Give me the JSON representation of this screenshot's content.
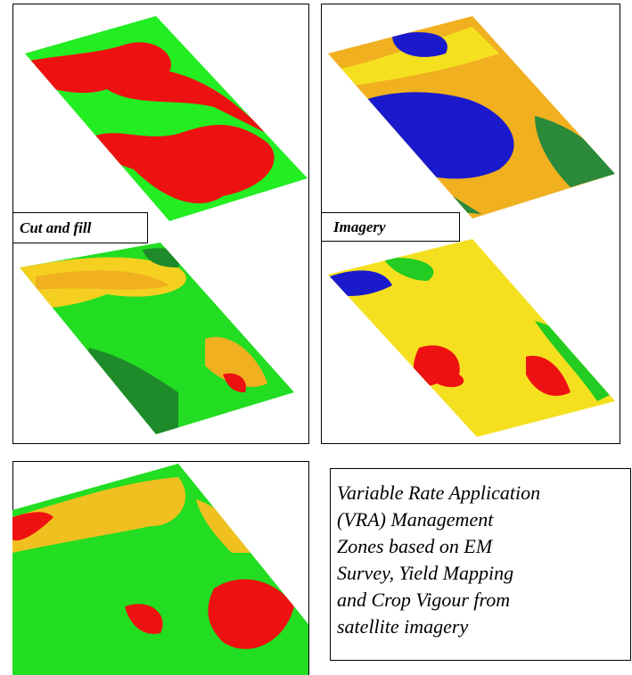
{
  "panels": {
    "cut_and_fill": {
      "label": "Cut and fill"
    },
    "imagery": {
      "label": "Imagery"
    }
  },
  "description": {
    "lines": [
      "Variable Rate Application",
      "(VRA) Management",
      "Zones based on EM",
      "Survey, Yield Mapping",
      "and Crop Vigour from",
      "satellite imagery"
    ]
  }
}
